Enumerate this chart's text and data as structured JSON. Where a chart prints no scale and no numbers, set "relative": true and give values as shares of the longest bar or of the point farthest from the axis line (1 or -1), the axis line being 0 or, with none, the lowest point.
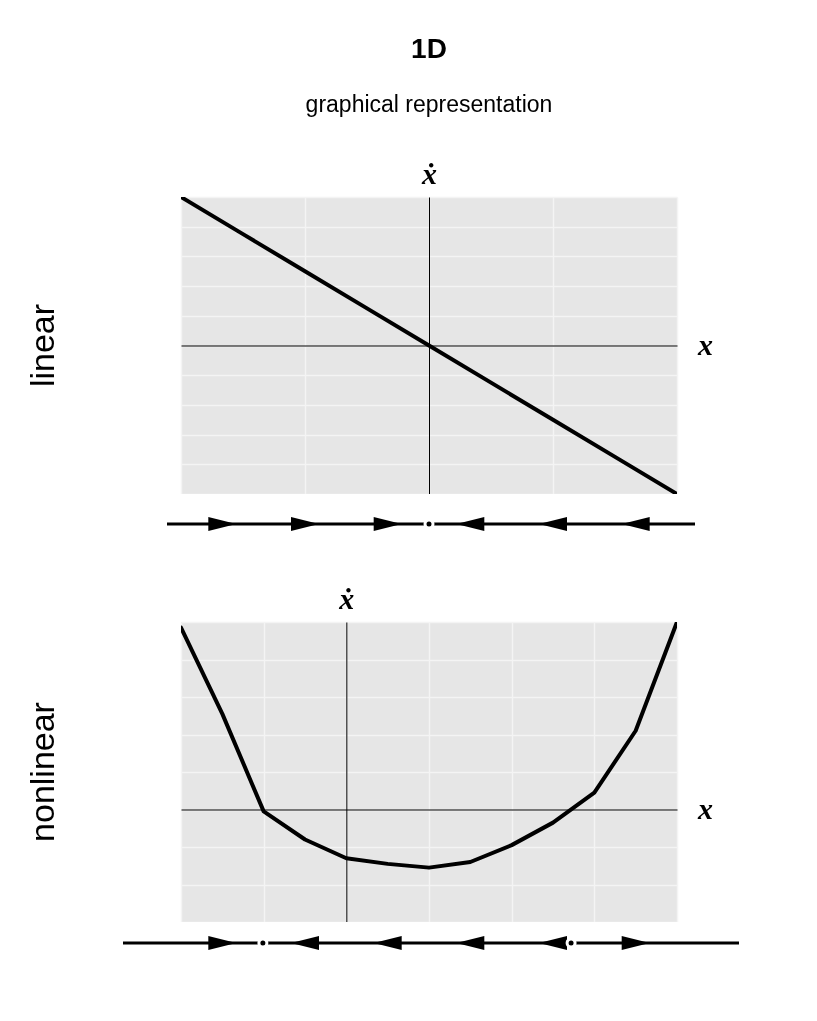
{
  "chart_data": [
    {
      "type": "line",
      "title": "1D",
      "subtitle": "graphical representation",
      "ylabel": "ẋ",
      "xlabel": "x",
      "annotations": [
        "linear"
      ],
      "categories": [
        null,
        null,
        null,
        null,
        null,
        null,
        null,
        null,
        null
      ],
      "relative": true,
      "grid": true,
      "series": [
        {
          "color": "#000000",
          "values": [
            1,
            0.75,
            0.5,
            0.25,
            0,
            -0.25,
            -0.5,
            -0.75,
            -1
          ]
        }
      ]
    },
    {
      "type": "line",
      "ylabel": "ẋ",
      "xlabel": "x",
      "annotations": [
        "nonlinear"
      ],
      "categories": [
        null,
        null,
        null,
        null,
        null,
        null,
        null,
        null,
        null,
        null,
        null,
        null,
        null
      ],
      "relative": true,
      "grid": true,
      "series": [
        {
          "color": "#000000",
          "values": [
            0.97,
            0.51,
            -0.01,
            -0.16,
            -0.26,
            -0.29,
            -0.31,
            -0.28,
            -0.19,
            -0.07,
            0.09,
            0.42,
            1
          ]
        }
      ]
    }
  ]
}
